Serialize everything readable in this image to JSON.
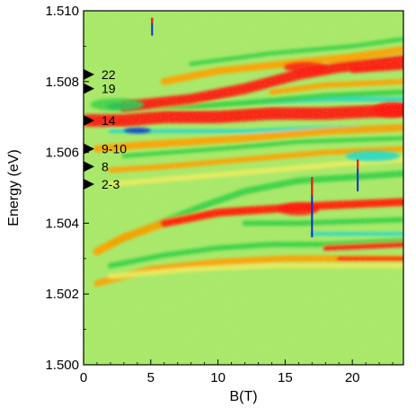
{
  "chart_data": {
    "type": "heatmap",
    "xlabel": "B(T)",
    "ylabel": "Energy (eV)",
    "xlim": [
      0,
      23.8
    ],
    "ylim": [
      1.5,
      1.51
    ],
    "x_ticks": [
      {
        "value": 0,
        "label": "0"
      },
      {
        "value": 5,
        "label": "5"
      },
      {
        "value": 10,
        "label": "10"
      },
      {
        "value": 15,
        "label": "15"
      },
      {
        "value": 20,
        "label": "20"
      }
    ],
    "y_ticks": [
      {
        "value": 1.5,
        "label": "1.500"
      },
      {
        "value": 1.502,
        "label": "1.502"
      },
      {
        "value": 1.504,
        "label": "1.504"
      },
      {
        "value": 1.506,
        "label": "1.506"
      },
      {
        "value": 1.508,
        "label": "1.508"
      },
      {
        "value": 1.51,
        "label": "1.510"
      }
    ],
    "background_color": "#a8e86a",
    "colors": {
      "red": "#ff1a10",
      "orange": "#ffa000",
      "yellow": "#ecec60",
      "green": "#38d048",
      "cyan": "#20d8d0",
      "blue": "#1030c8"
    },
    "markers": [
      {
        "label": "22",
        "energy": 1.5082
      },
      {
        "label": "19",
        "energy": 1.5078
      },
      {
        "label": "14",
        "energy": 1.5069
      },
      {
        "label": "9-10",
        "energy": 1.5061
      },
      {
        "label": "8",
        "energy": 1.5056
      },
      {
        "label": "2-3",
        "energy": 1.5051
      }
    ],
    "bands": [
      {
        "color": "red",
        "width": 0.00035,
        "points": [
          [
            0.3,
            1.5069
          ],
          [
            3,
            1.5069
          ],
          [
            6,
            1.507
          ],
          [
            10,
            1.507
          ],
          [
            14,
            1.5071
          ],
          [
            18,
            1.5071
          ],
          [
            23.8,
            1.5072
          ]
        ]
      },
      {
        "color": "cyan",
        "width": 0.0001,
        "points": [
          [
            2,
            1.5066
          ],
          [
            6,
            1.5066
          ],
          [
            12,
            1.5066
          ],
          [
            18,
            1.5067
          ],
          [
            23.8,
            1.5067
          ]
        ]
      },
      {
        "color": "cyan",
        "width": 0.00012,
        "points": [
          [
            12,
            1.5074
          ],
          [
            18,
            1.5075
          ],
          [
            23.8,
            1.5075
          ]
        ]
      },
      {
        "color": "green",
        "width": 0.00015,
        "points": [
          [
            2,
            1.5073
          ],
          [
            8,
            1.5073
          ],
          [
            12,
            1.5074
          ],
          [
            18,
            1.5076
          ],
          [
            23.8,
            1.5077
          ]
        ]
      },
      {
        "color": "red",
        "width": 0.0003,
        "points": [
          [
            3,
            1.5073
          ],
          [
            8,
            1.5075
          ],
          [
            12,
            1.5078
          ],
          [
            16,
            1.5082
          ],
          [
            19,
            1.5084
          ],
          [
            23.8,
            1.5086
          ]
        ]
      },
      {
        "color": "orange",
        "width": 0.0002,
        "points": [
          [
            6,
            1.508
          ],
          [
            10,
            1.5083
          ],
          [
            15,
            1.5085
          ],
          [
            20,
            1.5087
          ],
          [
            23.8,
            1.5089
          ]
        ]
      },
      {
        "color": "green",
        "width": 0.00012,
        "points": [
          [
            8,
            1.5085
          ],
          [
            14,
            1.5088
          ],
          [
            20,
            1.509
          ],
          [
            23.8,
            1.5092
          ]
        ]
      },
      {
        "color": "orange",
        "width": 0.00015,
        "points": [
          [
            14,
            1.5077
          ],
          [
            18,
            1.5079
          ],
          [
            23.8,
            1.508
          ]
        ]
      },
      {
        "color": "red",
        "width": 0.00012,
        "points": [
          [
            20,
            1.5083
          ],
          [
            23.8,
            1.5084
          ]
        ]
      },
      {
        "color": "orange",
        "width": 0.0002,
        "points": [
          [
            1,
            1.5061
          ],
          [
            4,
            1.5062
          ],
          [
            8,
            1.5063
          ],
          [
            12,
            1.5064
          ],
          [
            18,
            1.5066
          ],
          [
            23.8,
            1.5067
          ]
        ]
      },
      {
        "color": "green",
        "width": 0.00012,
        "points": [
          [
            3,
            1.5059
          ],
          [
            10,
            1.5061
          ],
          [
            16,
            1.5063
          ],
          [
            23.8,
            1.5064
          ]
        ]
      },
      {
        "color": "orange",
        "width": 0.00015,
        "points": [
          [
            2,
            1.5055
          ],
          [
            6,
            1.5056
          ],
          [
            12,
            1.5058
          ],
          [
            18,
            1.506
          ],
          [
            23.8,
            1.5061
          ]
        ]
      },
      {
        "color": "yellow",
        "width": 0.00015,
        "points": [
          [
            2,
            1.5051
          ],
          [
            8,
            1.5053
          ],
          [
            14,
            1.5055
          ],
          [
            20,
            1.5057
          ],
          [
            23.8,
            1.5058
          ]
        ]
      },
      {
        "color": "green",
        "width": 0.00018,
        "points": [
          [
            2,
            1.5034
          ],
          [
            5,
            1.5039
          ],
          [
            9,
            1.5045
          ],
          [
            12,
            1.5049
          ],
          [
            16,
            1.5052
          ],
          [
            20,
            1.5053
          ],
          [
            23.8,
            1.5054
          ]
        ]
      },
      {
        "color": "orange",
        "width": 0.00022,
        "points": [
          [
            1,
            1.5032
          ],
          [
            3,
            1.5036
          ],
          [
            6,
            1.504
          ],
          [
            10,
            1.5043
          ],
          [
            14,
            1.5044
          ],
          [
            18,
            1.5045
          ],
          [
            23.8,
            1.5046
          ]
        ]
      },
      {
        "color": "red",
        "width": 0.00022,
        "points": [
          [
            6,
            1.504
          ],
          [
            10,
            1.5043
          ],
          [
            14,
            1.5044
          ],
          [
            18,
            1.5045
          ],
          [
            23.8,
            1.5046
          ]
        ]
      },
      {
        "color": "green",
        "width": 0.00015,
        "points": [
          [
            12,
            1.504
          ],
          [
            16,
            1.504
          ],
          [
            23.8,
            1.5041
          ]
        ]
      },
      {
        "color": "cyan",
        "width": 0.0001,
        "points": [
          [
            17,
            1.5037
          ],
          [
            23.8,
            1.5037
          ]
        ]
      },
      {
        "color": "green",
        "width": 0.00015,
        "points": [
          [
            2,
            1.5028
          ],
          [
            6,
            1.5031
          ],
          [
            10,
            1.5033
          ],
          [
            14,
            1.5034
          ],
          [
            18,
            1.5034
          ],
          [
            23.8,
            1.5035
          ]
        ]
      },
      {
        "color": "red",
        "width": 0.00015,
        "points": [
          [
            18,
            1.5033
          ],
          [
            23.8,
            1.5034
          ]
        ]
      },
      {
        "color": "orange",
        "width": 0.00018,
        "points": [
          [
            1,
            1.5023
          ],
          [
            5,
            1.5027
          ],
          [
            10,
            1.5029
          ],
          [
            15,
            1.503
          ],
          [
            20,
            1.503
          ],
          [
            23.8,
            1.503
          ]
        ]
      },
      {
        "color": "red",
        "width": 0.00012,
        "points": [
          [
            19,
            1.503
          ],
          [
            23.8,
            1.503
          ]
        ]
      },
      {
        "color": "yellow",
        "width": 0.00014,
        "points": [
          [
            2,
            1.5025
          ],
          [
            8,
            1.5027
          ],
          [
            14,
            1.5028
          ],
          [
            23.8,
            1.5028
          ]
        ]
      }
    ],
    "blobs": [
      {
        "color": "blue",
        "x": 3.0,
        "y": 1.50731,
        "rx": 1.3,
        "ry": 8e-05
      },
      {
        "color": "blue",
        "x": 4.0,
        "y": 1.50662,
        "rx": 1.0,
        "ry": 8e-05
      },
      {
        "color": "green",
        "x": 2.5,
        "y": 1.50735,
        "rx": 2.0,
        "ry": 0.00018
      },
      {
        "color": "red",
        "x": 16.5,
        "y": 1.5084,
        "rx": 1.6,
        "ry": 0.00015
      },
      {
        "color": "red",
        "x": 23.0,
        "y": 1.5072,
        "rx": 1.5,
        "ry": 0.00022
      },
      {
        "color": "cyan",
        "x": 21.5,
        "y": 1.5059,
        "rx": 2.0,
        "ry": 0.00015
      },
      {
        "color": "red",
        "x": 16.0,
        "y": 1.5044,
        "rx": 1.5,
        "ry": 0.00018
      }
    ],
    "spikes": [
      {
        "x": 5.1,
        "y_min": 1.5093,
        "y_max": 1.5098,
        "color": "blue",
        "top_color": "red"
      },
      {
        "x": 17.0,
        "y_min": 1.5036,
        "y_max": 1.5053,
        "color": "blue",
        "top_color": "red"
      },
      {
        "x": 20.4,
        "y_min": 1.5049,
        "y_max": 1.5058,
        "color": "blue",
        "top_color": "red"
      }
    ]
  }
}
